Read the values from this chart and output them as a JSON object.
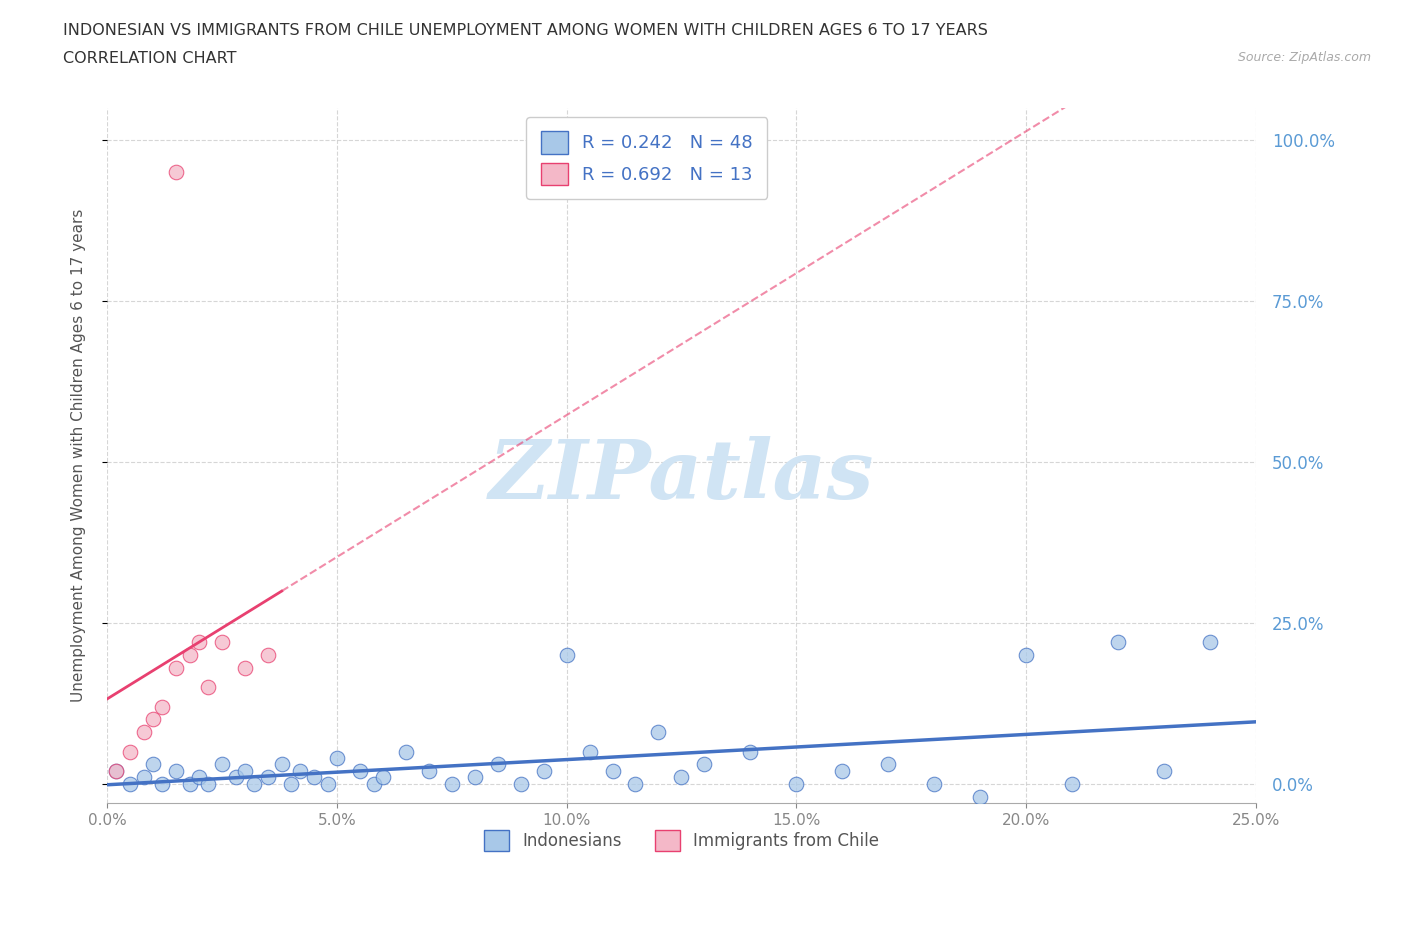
{
  "title_line1": "INDONESIAN VS IMMIGRANTS FROM CHILE UNEMPLOYMENT AMONG WOMEN WITH CHILDREN AGES 6 TO 17 YEARS",
  "title_line2": "CORRELATION CHART",
  "source": "Source: ZipAtlas.com",
  "ylabel": "Unemployment Among Women with Children Ages 6 to 17 years",
  "xlim": [
    0.0,
    0.25
  ],
  "ylim": [
    -0.03,
    1.05
  ],
  "xtick_vals": [
    0.0,
    0.05,
    0.1,
    0.15,
    0.2,
    0.25
  ],
  "ytick_vals": [
    0.0,
    0.25,
    0.5,
    0.75,
    1.0
  ],
  "R_indonesian": 0.242,
  "N_indonesian": 48,
  "R_chile": 0.692,
  "N_chile": 13,
  "color_indonesian": "#a8c8e8",
  "color_chile": "#f4b8c8",
  "trendline_color_indonesian": "#4472c4",
  "trendline_color_chile": "#e84070",
  "watermark_color": "#d0e4f4",
  "legend_labels": [
    "Indonesians",
    "Immigrants from Chile"
  ],
  "indonesian_x": [
    0.002,
    0.005,
    0.008,
    0.01,
    0.012,
    0.015,
    0.018,
    0.02,
    0.022,
    0.025,
    0.028,
    0.03,
    0.032,
    0.035,
    0.038,
    0.04,
    0.042,
    0.045,
    0.048,
    0.05,
    0.055,
    0.058,
    0.06,
    0.065,
    0.07,
    0.075,
    0.08,
    0.085,
    0.09,
    0.095,
    0.1,
    0.105,
    0.11,
    0.115,
    0.12,
    0.125,
    0.13,
    0.14,
    0.15,
    0.16,
    0.17,
    0.18,
    0.19,
    0.2,
    0.21,
    0.22,
    0.23,
    0.24
  ],
  "indonesian_y": [
    0.02,
    0.0,
    0.01,
    0.03,
    0.0,
    0.02,
    0.0,
    0.01,
    0.0,
    0.03,
    0.01,
    0.02,
    0.0,
    0.01,
    0.03,
    0.0,
    0.02,
    0.01,
    0.0,
    0.04,
    0.02,
    0.0,
    0.01,
    0.05,
    0.02,
    0.0,
    0.01,
    0.03,
    0.0,
    0.02,
    0.2,
    0.05,
    0.02,
    0.0,
    0.08,
    0.01,
    0.03,
    0.05,
    0.0,
    0.02,
    0.03,
    0.0,
    -0.02,
    0.2,
    0.0,
    0.22,
    0.02,
    0.22
  ],
  "chile_x": [
    0.002,
    0.005,
    0.008,
    0.01,
    0.012,
    0.015,
    0.018,
    0.02,
    0.022,
    0.025,
    0.03,
    0.035,
    0.015
  ],
  "chile_y": [
    0.02,
    0.05,
    0.08,
    0.1,
    0.12,
    0.18,
    0.2,
    0.22,
    0.15,
    0.22,
    0.18,
    0.2,
    0.95
  ]
}
